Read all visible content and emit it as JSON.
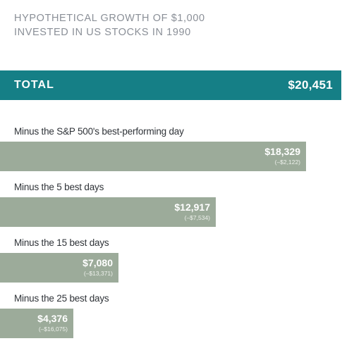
{
  "title_lines": [
    "HYPOTHETICAL GROWTH OF $1,000",
    "INVESTED IN US STOCKS IN 1990"
  ],
  "total": {
    "label": "TOTAL",
    "value": "$20,451"
  },
  "colors": {
    "total_bar": "#157f86",
    "bar": "#9cab9a",
    "title": "#8a8f97"
  },
  "chart_data": {
    "type": "bar",
    "orientation": "horizontal",
    "title": "HYPOTHETICAL GROWTH OF $1,000 INVESTED IN US STOCKS IN 1990",
    "total": 20451,
    "categories": [
      "Minus the S&P 500's best-performing day",
      "Minus the 5 best days",
      "Minus the 15 best days",
      "Minus the 25 best days"
    ],
    "values": [
      18329,
      12917,
      7080,
      4376
    ],
    "value_labels": [
      "$18,329",
      "$12,917",
      "$7,080",
      "$4,376"
    ],
    "difference_labels": [
      "(–$2,122)",
      "(–$7,534)",
      "(–$13,371)",
      "(–$16,075)"
    ],
    "grid": false,
    "legend": "none"
  }
}
